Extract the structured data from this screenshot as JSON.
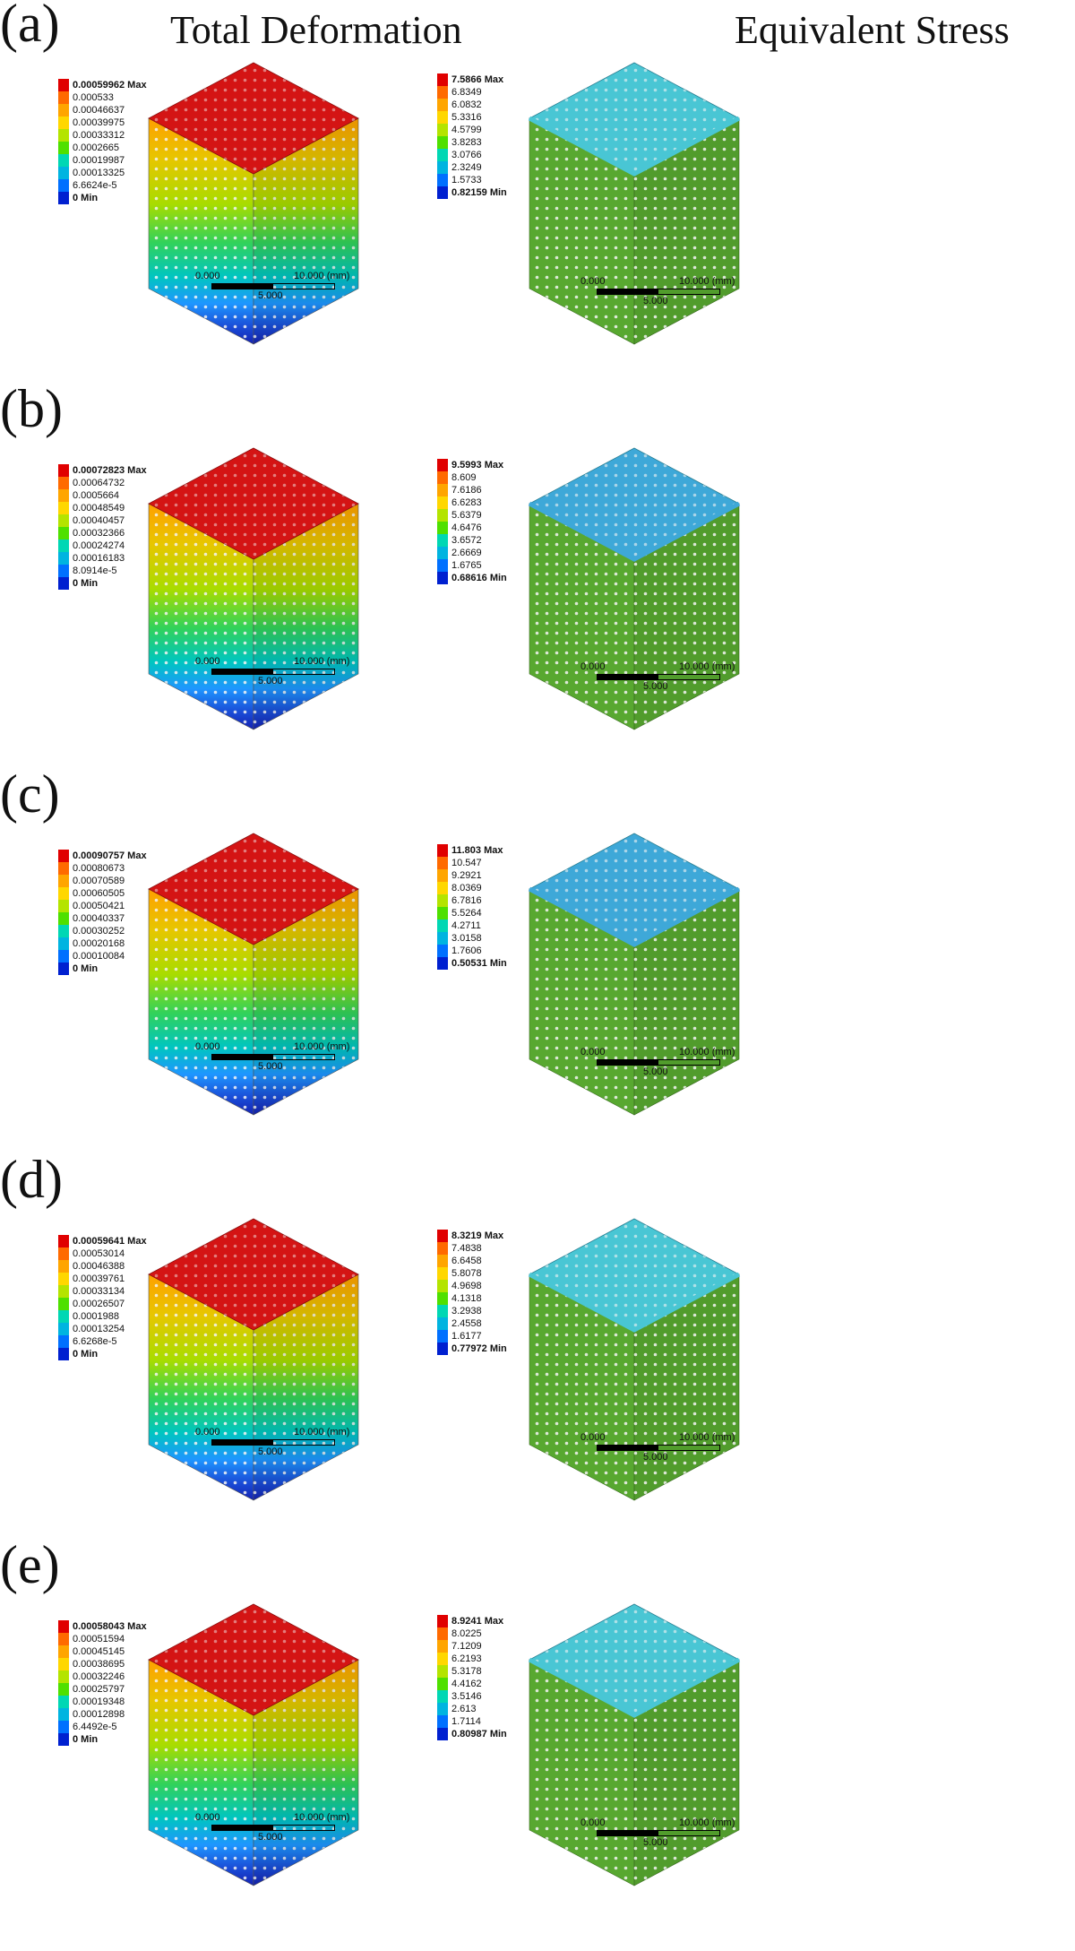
{
  "titles": {
    "left": "Total Deformation",
    "right": "Equivalent Stress"
  },
  "legend_colors": [
    "#e00000",
    "#ff6a00",
    "#ffa500",
    "#ffd700",
    "#b4e400",
    "#4fe000",
    "#00d7b4",
    "#00b4e0",
    "#0070ff",
    "#0020d0"
  ],
  "colors": {
    "deformation_top": "#d41414",
    "stress_top_cyan": "#49c6d4",
    "stress_side_green": "#58a830",
    "pore": "#f4f4f4"
  },
  "scale": {
    "zero": "0.000",
    "ten": "10.000 (mm)",
    "five": "5.000"
  },
  "rows": [
    {
      "label": "(a)",
      "deformation": [
        "0.00059962 Max",
        "0.000533",
        "0.00046637",
        "0.00039975",
        "0.00033312",
        "0.0002665",
        "0.00019987",
        "0.00013325",
        "6.6624e-5",
        "0 Min"
      ],
      "stress": [
        "7.5866 Max",
        "6.8349",
        "6.0832",
        "5.3316",
        "4.5799",
        "3.8283",
        "3.0766",
        "2.3249",
        "1.5733",
        "0.82159 Min"
      ]
    },
    {
      "label": "(b)",
      "deformation": [
        "0.00072823 Max",
        "0.00064732",
        "0.0005664",
        "0.00048549",
        "0.00040457",
        "0.00032366",
        "0.00024274",
        "0.00016183",
        "8.0914e-5",
        "0 Min"
      ],
      "stress": [
        "9.5993 Max",
        "8.609",
        "7.6186",
        "6.6283",
        "5.6379",
        "4.6476",
        "3.6572",
        "2.6669",
        "1.6765",
        "0.68616 Min"
      ]
    },
    {
      "label": "(c)",
      "deformation": [
        "0.00090757 Max",
        "0.00080673",
        "0.00070589",
        "0.00060505",
        "0.00050421",
        "0.00040337",
        "0.00030252",
        "0.00020168",
        "0.00010084",
        "0 Min"
      ],
      "stress": [
        "11.803 Max",
        "10.547",
        "9.2921",
        "8.0369",
        "6.7816",
        "5.5264",
        "4.2711",
        "3.0158",
        "1.7606",
        "0.50531 Min"
      ]
    },
    {
      "label": "(d)",
      "deformation": [
        "0.00059641 Max",
        "0.00053014",
        "0.00046388",
        "0.00039761",
        "0.00033134",
        "0.00026507",
        "0.0001988",
        "0.00013254",
        "6.6268e-5",
        "0 Min"
      ],
      "stress": [
        "8.3219 Max",
        "7.4838",
        "6.6458",
        "5.8078",
        "4.9698",
        "4.1318",
        "3.2938",
        "2.4558",
        "1.6177",
        "0.77972 Min"
      ]
    },
    {
      "label": "(e)",
      "deformation": [
        "0.00058043 Max",
        "0.00051594",
        "0.00045145",
        "0.00038695",
        "0.00032246",
        "0.00025797",
        "0.00019348",
        "0.00012898",
        "6.4492e-5",
        "0 Min"
      ],
      "stress": [
        "8.9241 Max",
        "8.0225",
        "7.1209",
        "6.2193",
        "5.3178",
        "4.4162",
        "3.5146",
        "2.613",
        "1.7114",
        "0.80987 Min"
      ]
    }
  ]
}
